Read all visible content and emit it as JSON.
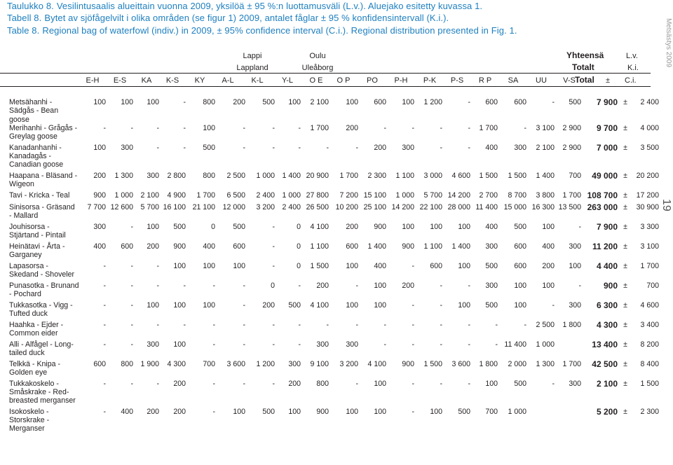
{
  "captions": [
    {
      "label": "Taulukko 8.",
      "text": "Vesilintusaalis alueittain vuonna 2009, yksilöä ± 95 %:n luottamusväli (L.v.). Aluejako esitetty kuvassa 1."
    },
    {
      "label": "Tabell 8.",
      "text": "Bytet av sjöfågelvilt i olika områden (se figur 1) 2009, antalet fåglar ± 95 % konfidensintervall (K.i.)."
    },
    {
      "label": "Table 8.",
      "text": "Regional bag of waterfowl (indiv.) in 2009, ± 95% confidence interval (C.i.). Regional distribution presented in Fig. 1."
    }
  ],
  "side_label": "Metsästys 2009",
  "page_number": "19",
  "header": {
    "lappi": "Lappi",
    "lappland": "Lappland",
    "oulu": "Oulu",
    "uleaborg": "Uleåborg",
    "yhteensa": "Yhteensä",
    "totalt": "Totalt",
    "lv": "L.v.",
    "ki": "K.i.",
    "total": "Total",
    "pm": "±",
    "ci": "C.i.",
    "regions": [
      "E-H",
      "E-S",
      "KA",
      "K-S",
      "KY",
      "A-L",
      "K-L",
      "Y-L",
      "O E",
      "O P",
      "PO",
      "P-H",
      "P-K",
      "P-S",
      "R P",
      "SA",
      "UU",
      "V-S"
    ]
  },
  "rows": [
    {
      "species": "Metsähanhi - Sädgås - Bean goose",
      "v": [
        "100",
        "100",
        "100",
        "-",
        "800",
        "200",
        "500",
        "100",
        "2 100",
        "100",
        "600",
        "100",
        "1 200",
        "-",
        "600",
        "600",
        "-",
        "500"
      ],
      "total": "7 900",
      "ci": "2 400"
    },
    {
      "species": "Merihanhi - Grågås - Greylag goose",
      "v": [
        "-",
        "-",
        "-",
        "-",
        "100",
        "-",
        "-",
        "-",
        "1 700",
        "200",
        "-",
        "-",
        "-",
        "-",
        "1 700",
        "-",
        "3 100",
        "2 900"
      ],
      "total": "9 700",
      "ci": "4 000"
    },
    {
      "species": "Kanadanhanhi - Kanadagås - Canadian goose",
      "v": [
        "100",
        "300",
        "-",
        "-",
        "500",
        "-",
        "-",
        "-",
        "-",
        "-",
        "200",
        "300",
        "-",
        "-",
        "400",
        "300",
        "2 100",
        "2 900"
      ],
      "total": "7 000",
      "ci": "3 500"
    },
    {
      "species": "Haapana - Bläsand - Wigeon",
      "v": [
        "200",
        "1 300",
        "300",
        "2 800",
        "800",
        "2 500",
        "1 000",
        "1 400",
        "20 900",
        "1 700",
        "2 300",
        "1 100",
        "3 000",
        "4 600",
        "1 500",
        "1 500",
        "1 400",
        "700"
      ],
      "total": "49 000",
      "ci": "20 200"
    },
    {
      "species": "Tavi - Kricka - Teal",
      "v": [
        "900",
        "1 000",
        "2 100",
        "4 900",
        "1 700",
        "6 500",
        "2 400",
        "1 000",
        "27 800",
        "7 200",
        "15 100",
        "1 000",
        "5 700",
        "14 200",
        "2 700",
        "8 700",
        "3 800",
        "1 700"
      ],
      "total": "108 700",
      "ci": "17 200"
    },
    {
      "species": "Sinisorsa - Gräsand - Mallard",
      "v": [
        "7 700",
        "12 600",
        "5 700",
        "16 100",
        "21 100",
        "12 000",
        "3 200",
        "2 400",
        "26 500",
        "10 200",
        "25 100",
        "14 200",
        "22 100",
        "28 000",
        "11 400",
        "15 000",
        "16 300",
        "13 500"
      ],
      "total": "263 000",
      "ci": "30 900"
    },
    {
      "species": "Jouhisorsa - Stjärtand - Pintail",
      "v": [
        "300",
        "-",
        "100",
        "500",
        "0",
        "500",
        "-",
        "0",
        "4 100",
        "200",
        "900",
        "100",
        "100",
        "100",
        "400",
        "500",
        "100",
        "-"
      ],
      "total": "7 900",
      "ci": "3 300"
    },
    {
      "species": "Heinätavi - Årta - Garganey",
      "v": [
        "400",
        "600",
        "200",
        "900",
        "400",
        "600",
        "-",
        "0",
        "1 100",
        "600",
        "1 400",
        "900",
        "1 100",
        "1 400",
        "300",
        "600",
        "400",
        "300"
      ],
      "total": "11 200",
      "ci": "3 100"
    },
    {
      "species": "Lapasorsa - Skedand - Shoveler",
      "v": [
        "-",
        "-",
        "-",
        "100",
        "100",
        "100",
        "-",
        "0",
        "1 500",
        "100",
        "400",
        "-",
        "600",
        "100",
        "500",
        "600",
        "200",
        "100"
      ],
      "total": "4 400",
      "ci": "1 700"
    },
    {
      "species": "Punasotka - Brunand - Pochard",
      "v": [
        "-",
        "-",
        "-",
        "-",
        "-",
        "-",
        "0",
        "-",
        "200",
        "-",
        "100",
        "200",
        "-",
        "-",
        "300",
        "100",
        "100",
        "-"
      ],
      "total": "900",
      "ci": "700"
    },
    {
      "species": "Tukkasotka - Vigg - Tufted duck",
      "v": [
        "-",
        "-",
        "100",
        "100",
        "100",
        "-",
        "200",
        "500",
        "4 100",
        "100",
        "100",
        "-",
        "-",
        "100",
        "500",
        "100",
        "-",
        "300"
      ],
      "total": "6 300",
      "ci": "4 600"
    },
    {
      "species": "Haahka - Ejder - Common eider",
      "v": [
        "-",
        "-",
        "-",
        "-",
        "-",
        "-",
        "-",
        "-",
        "-",
        "-",
        "-",
        "-",
        "-",
        "-",
        "-",
        "-",
        "2 500",
        "1 800"
      ],
      "total": "4 300",
      "ci": "3 400"
    },
    {
      "species": "Alli - Alfågel - Long-tailed duck",
      "v": [
        "-",
        "-",
        "300",
        "100",
        "-",
        "-",
        "-",
        "-",
        "300",
        "300",
        "-",
        "-",
        "-",
        "-",
        "-",
        "11 400",
        "1 000",
        ""
      ],
      "total": "13 400",
      "ci": "8 200"
    },
    {
      "species": "Telkkä - Knipa - Golden eye",
      "v": [
        "600",
        "800",
        "1 900",
        "4 300",
        "700",
        "3 600",
        "1 200",
        "300",
        "9 100",
        "3 200",
        "4 100",
        "900",
        "1 500",
        "3 600",
        "1 800",
        "2 000",
        "1 300",
        "1 700"
      ],
      "total": "42 500",
      "ci": "8 400"
    },
    {
      "species": "Tukkakoskelo - Småskrake - Red-breasted merganser",
      "v": [
        "-",
        "-",
        "-",
        "200",
        "-",
        "-",
        "-",
        "200",
        "800",
        "-",
        "100",
        "-",
        "-",
        "-",
        "100",
        "500",
        "-",
        "300"
      ],
      "total": "2 100",
      "ci": "1 500"
    },
    {
      "species": "Isokoskelo - Storskrake - Merganser",
      "v": [
        "-",
        "400",
        "200",
        "200",
        "-",
        "100",
        "500",
        "100",
        "900",
        "100",
        "100",
        "-",
        "100",
        "500",
        "700",
        "1 000",
        "",
        ""
      ],
      "total": "5 200",
      "ci": "2 300"
    }
  ]
}
